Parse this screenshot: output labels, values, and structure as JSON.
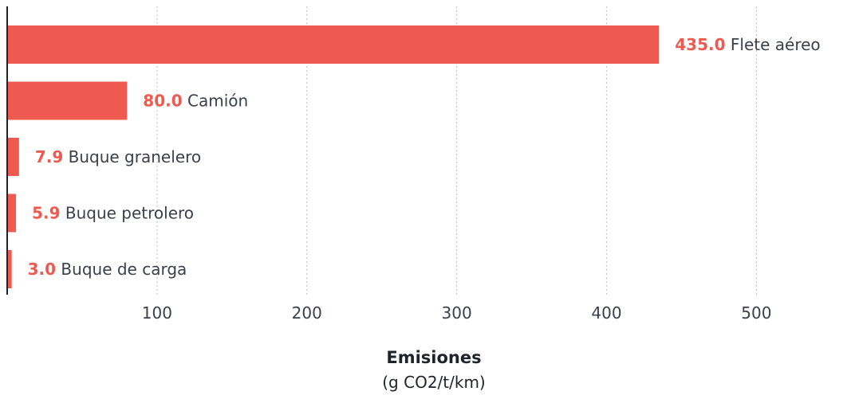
{
  "chart_data": {
    "type": "bar",
    "orientation": "horizontal",
    "categories": [
      "Flete aéreo",
      "Camión",
      "Buque granelero",
      "Buque petrolero",
      "Buque de carga"
    ],
    "values": [
      435.0,
      80.0,
      7.9,
      5.9,
      3.0
    ],
    "value_labels": [
      "435.0",
      "80.0",
      "7.9",
      "5.9",
      "3.0"
    ],
    "xlabel": "Emisiones",
    "xlabel_unit": "(g CO2/t/km)",
    "xlim": [
      0,
      565
    ],
    "x_ticks": [
      100,
      200,
      300,
      400,
      500
    ],
    "x_tick_labels": [
      "100",
      "200",
      "300",
      "400",
      "500"
    ],
    "grid": "vertical-dotted",
    "colors": {
      "bar": "#ee5a4f",
      "value_text": "#ee5a4f",
      "label_text": "#3a3f4a",
      "axis": "#1f232b",
      "grid": "#c8c8c8"
    }
  }
}
